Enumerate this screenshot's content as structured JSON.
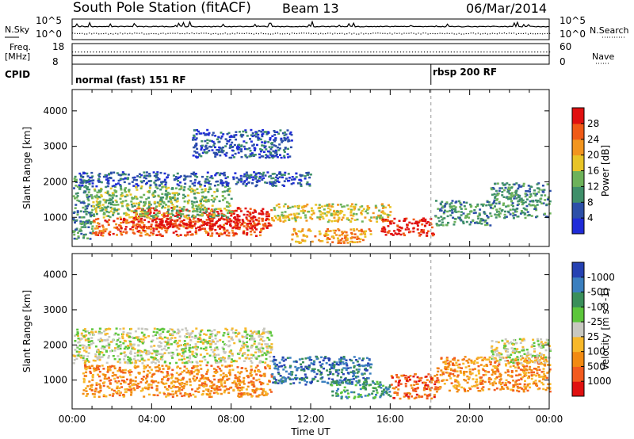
{
  "header": {
    "title": "South Pole Station (fitACF)",
    "beam": "Beam 13",
    "date": "06/Mar/2014"
  },
  "top_panels": {
    "nsky_label": "N.Sky",
    "nsearch_label": "N.Search",
    "freq_label": "Freq.",
    "freq_unit": "[MHz]",
    "nave_label": "Nave",
    "cpid_label": "CPID",
    "noise_ticks": [
      "10^5",
      "10^0"
    ],
    "freq_ticks": [
      "18",
      "8"
    ],
    "nave_ticks": [
      "60",
      "0"
    ],
    "cpid_segments": [
      {
        "label": "normal (fast) 151 RF",
        "start_hour": 0
      },
      {
        "label": "rbsp 200 RF",
        "start_hour": 18
      }
    ]
  },
  "chart_data": [
    {
      "type": "heatmap",
      "name": "power",
      "ylabel": "Slant Range [km]",
      "xlabel": "",
      "ylim": [
        180,
        4600
      ],
      "xlim_hours": [
        0,
        24
      ],
      "y_ticks": [
        1000,
        2000,
        3000,
        4000
      ],
      "colorbar": {
        "label": "Power [dB]",
        "ticks": [
          4,
          8,
          12,
          16,
          20,
          24,
          28
        ],
        "colors": [
          "#1f2bd8",
          "#2c4fa8",
          "#3f8f6a",
          "#6db25a",
          "#e8c427",
          "#f2951f",
          "#f05a16",
          "#e01010"
        ]
      },
      "bands": [
        {
          "t0": 0.0,
          "t1": 1.0,
          "r0": 400,
          "r1": 2200,
          "level": 2
        },
        {
          "t0": 1.0,
          "t1": 10.0,
          "r0": 500,
          "r1": 1000,
          "level": 6
        },
        {
          "t0": 3.0,
          "t1": 10.0,
          "r0": 700,
          "r1": 1300,
          "level": 7
        },
        {
          "t0": 1.0,
          "t1": 8.0,
          "r0": 1000,
          "r1": 1900,
          "level": 3
        },
        {
          "t0": 0.3,
          "t1": 12.0,
          "r0": 1900,
          "r1": 2300,
          "level": 1
        },
        {
          "t0": 10.0,
          "t1": 16.0,
          "r0": 900,
          "r1": 1400,
          "level": 4
        },
        {
          "t0": 11.0,
          "t1": 15.0,
          "r0": 300,
          "r1": 700,
          "level": 5
        },
        {
          "t0": 15.5,
          "t1": 18.2,
          "r0": 500,
          "r1": 1000,
          "level": 7
        },
        {
          "t0": 18.2,
          "t1": 21.0,
          "r0": 800,
          "r1": 1500,
          "level": 2
        },
        {
          "t0": 21.0,
          "t1": 24.0,
          "r0": 1000,
          "r1": 2000,
          "level": 2
        },
        {
          "t0": 6.0,
          "t1": 11.0,
          "r0": 2700,
          "r1": 3500,
          "level": 1
        }
      ]
    },
    {
      "type": "heatmap",
      "name": "velocity",
      "ylabel": "Slant Range [km]",
      "xlabel": "Time UT",
      "ylim": [
        180,
        4600
      ],
      "xlim_hours": [
        0,
        24
      ],
      "y_ticks": [
        1000,
        2000,
        3000,
        4000
      ],
      "x_ticks": [
        "00:00",
        "04:00",
        "08:00",
        "12:00",
        "16:00",
        "20:00",
        "00:00"
      ],
      "colorbar": {
        "label": "Velocity [m s^-1]",
        "ticks": [
          "1000",
          "500",
          "100",
          "25",
          "-25",
          "-100",
          "-500",
          "-1000"
        ],
        "colors": [
          "#2541b2",
          "#3b7fbf",
          "#3a8f5a",
          "#5cc63b",
          "#c8c8c0",
          "#f7b82a",
          "#f28a12",
          "#f25a1e",
          "#e01010"
        ]
      },
      "bands": [
        {
          "t0": 0.0,
          "t1": 10.0,
          "r0": 1500,
          "r1": 2500,
          "level": 4
        },
        {
          "t0": 0.5,
          "t1": 10.0,
          "r0": 550,
          "r1": 1450,
          "level": 6
        },
        {
          "t0": 10.0,
          "t1": 15.0,
          "r0": 900,
          "r1": 1700,
          "level": 1
        },
        {
          "t0": 13.0,
          "t1": 16.0,
          "r0": 500,
          "r1": 1000,
          "level": 2
        },
        {
          "t0": 16.0,
          "t1": 18.3,
          "r0": 500,
          "r1": 1200,
          "level": 7
        },
        {
          "t0": 18.3,
          "t1": 24.0,
          "r0": 700,
          "r1": 1700,
          "level": 6
        },
        {
          "t0": 21.0,
          "t1": 24.0,
          "r0": 1500,
          "r1": 2200,
          "level": 4
        }
      ]
    }
  ]
}
